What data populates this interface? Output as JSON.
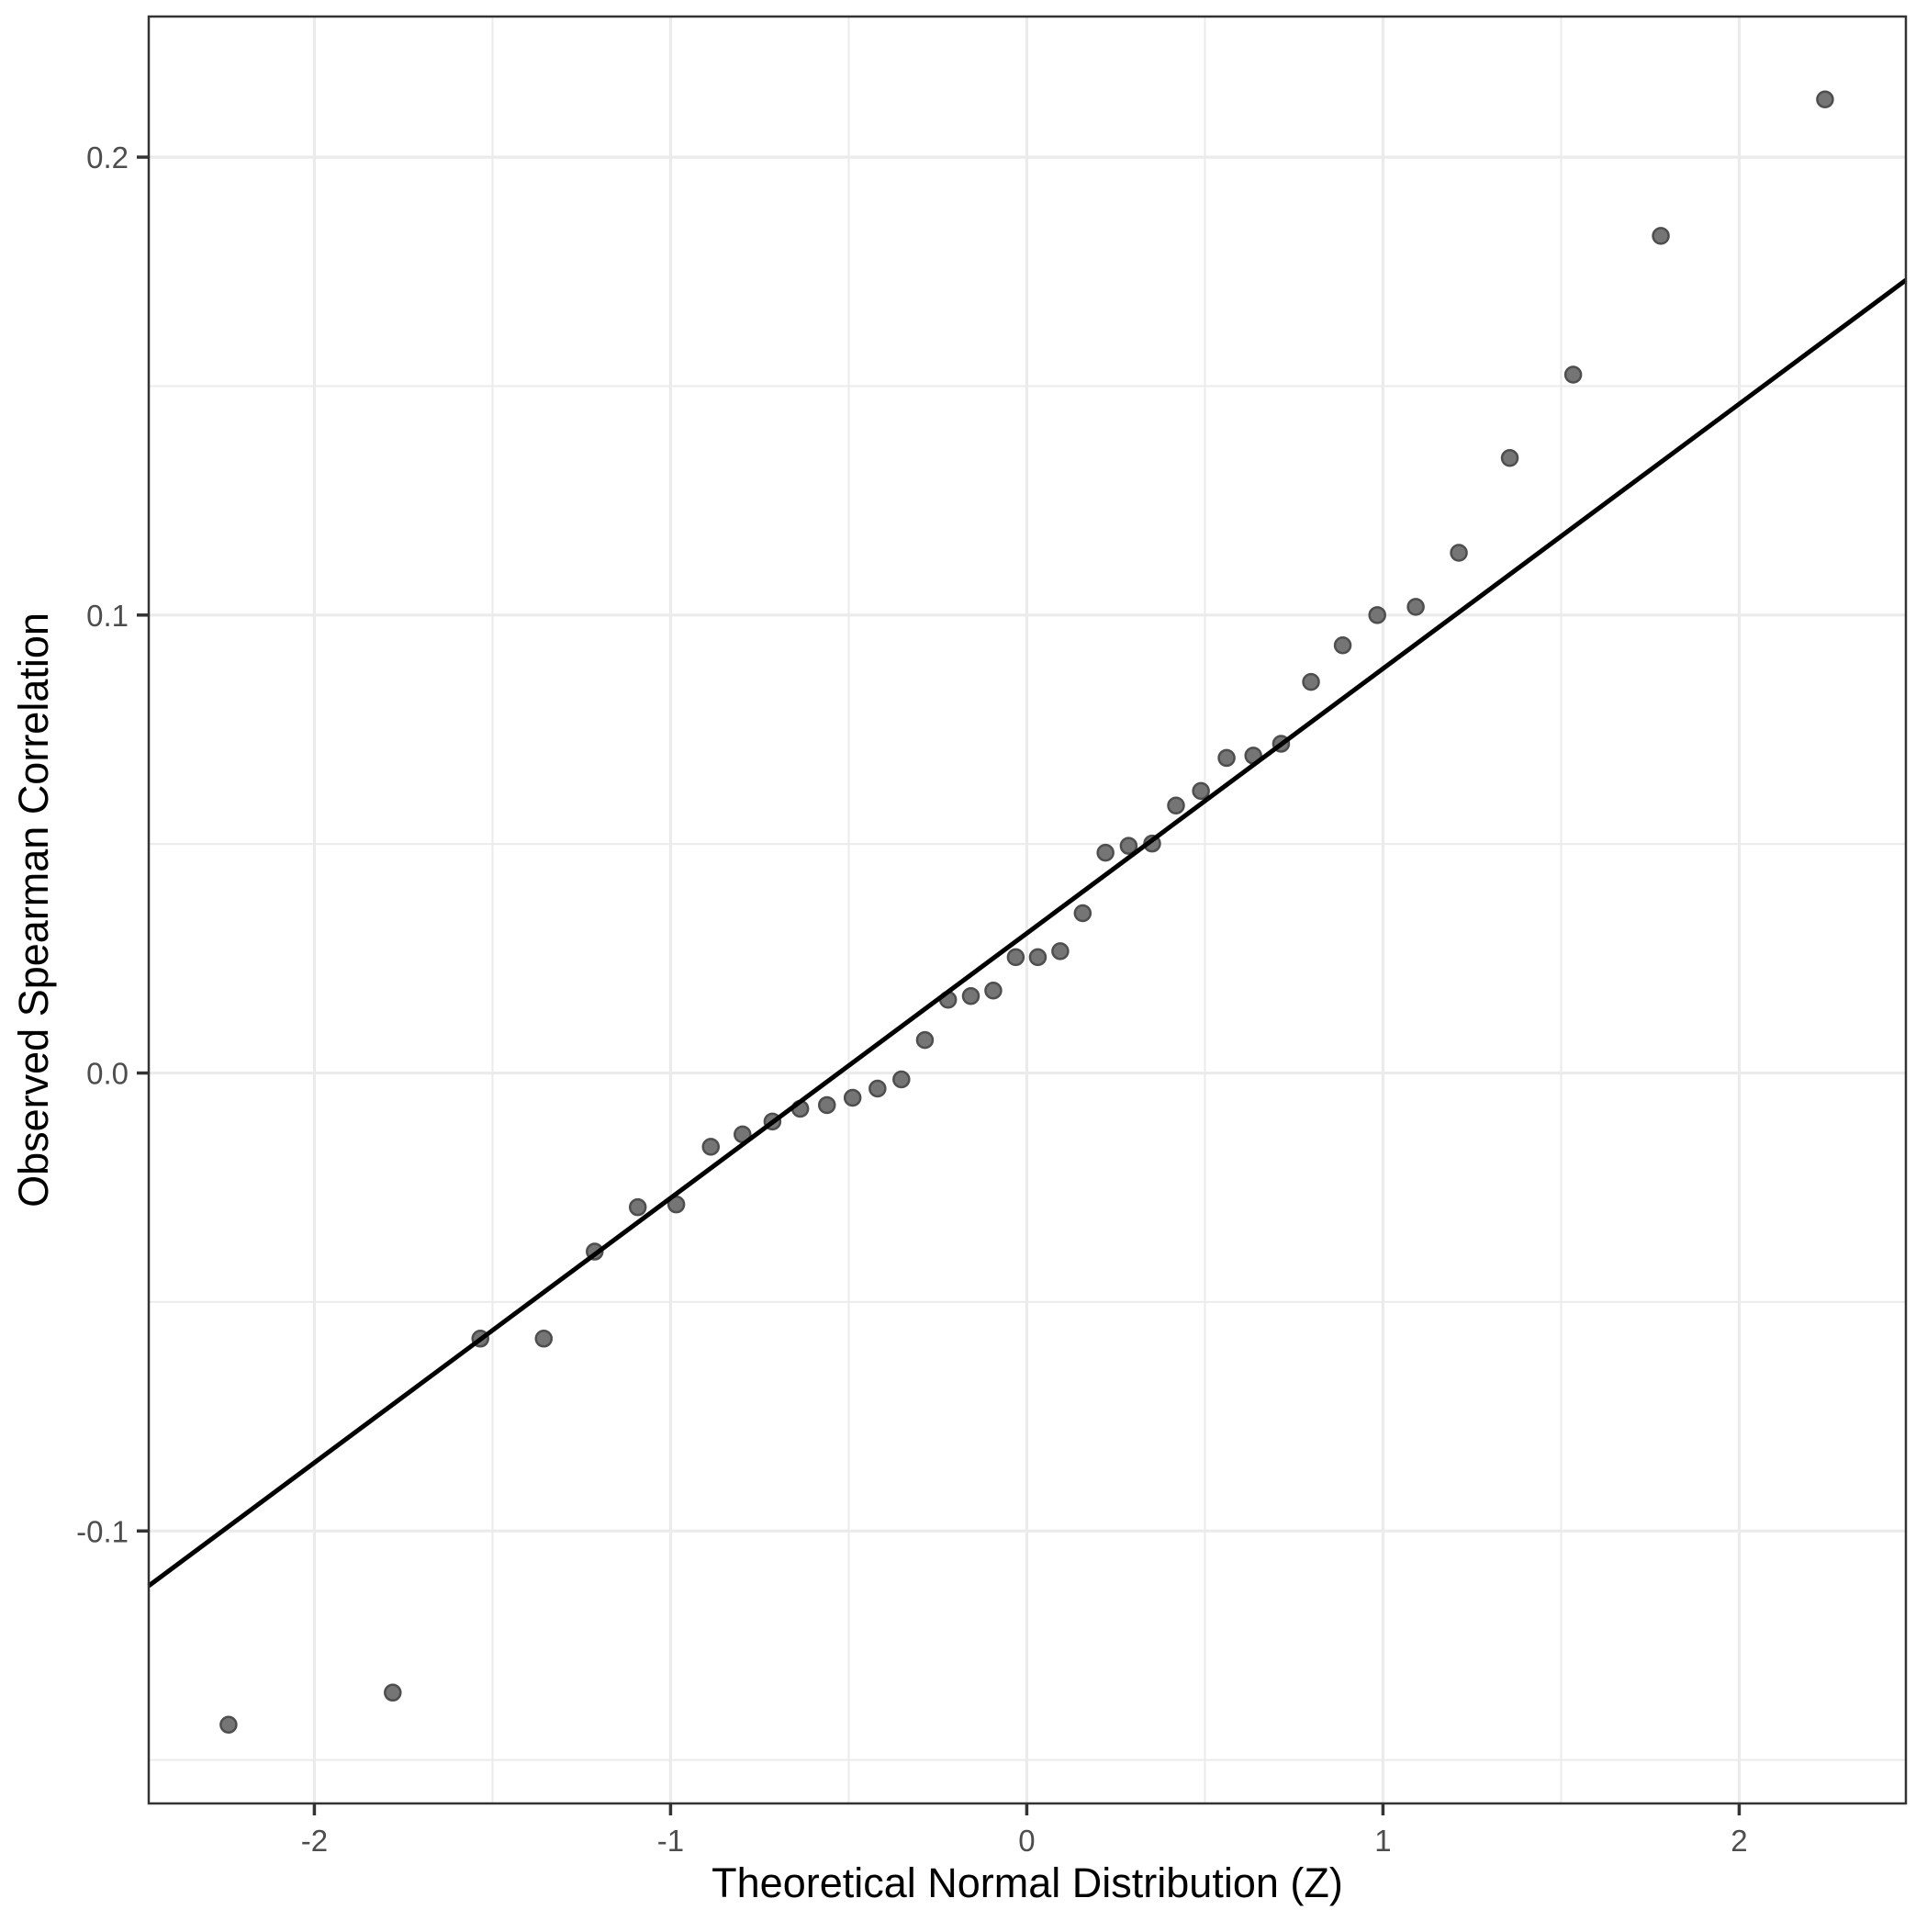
{
  "chart_data": {
    "type": "scatter",
    "title": "",
    "xlabel": "Theoretical Normal Distribution (Z)",
    "ylabel": "Observed Spearman Correlation",
    "xlim": [
      -2.465,
      2.468
    ],
    "ylim": [
      -0.1595,
      0.2307
    ],
    "x_major_ticks": [
      -2,
      -1,
      0,
      1,
      2
    ],
    "x_tick_labels": [
      "-2",
      "-1",
      "0",
      "1",
      "2"
    ],
    "x_minor_ticks": [
      -1.5,
      -0.5,
      0.5,
      1.5
    ],
    "y_major_ticks": [
      -0.1,
      0,
      0.1,
      0.2
    ],
    "y_tick_labels": [
      "-0.1",
      "0.0",
      "0.1",
      "0.2"
    ],
    "y_minor_ticks": [
      -0.15,
      -0.05,
      0.05,
      0.15
    ],
    "grid": true,
    "legend_position": "none",
    "reference_line": {
      "intercept": 0.0305,
      "slope": 0.0578
    },
    "points": [
      [
        -2.241,
        -0.1423
      ],
      [
        -1.78,
        -0.1353
      ],
      [
        -1.534,
        -0.058
      ],
      [
        -1.356,
        -0.058
      ],
      [
        -1.213,
        -0.039
      ],
      [
        -1.092,
        -0.0293
      ],
      [
        -0.984,
        -0.0287
      ],
      [
        -0.887,
        -0.0161
      ],
      [
        -0.798,
        -0.0134
      ],
      [
        -0.714,
        -0.0106
      ],
      [
        -0.636,
        -0.0078
      ],
      [
        -0.561,
        -0.007
      ],
      [
        -0.489,
        -0.0054
      ],
      [
        -0.419,
        -0.0034
      ],
      [
        -0.352,
        -0.0014
      ],
      [
        -0.286,
        0.0072
      ],
      [
        -0.221,
        0.016
      ],
      [
        -0.157,
        0.0168
      ],
      [
        -0.094,
        0.018
      ],
      [
        -0.031,
        0.0253
      ],
      [
        0.031,
        0.0253
      ],
      [
        0.094,
        0.0266
      ],
      [
        0.157,
        0.0349
      ],
      [
        0.221,
        0.0481
      ],
      [
        0.286,
        0.0496
      ],
      [
        0.352,
        0.0501
      ],
      [
        0.419,
        0.0584
      ],
      [
        0.489,
        0.0616
      ],
      [
        0.561,
        0.0688
      ],
      [
        0.636,
        0.0693
      ],
      [
        0.714,
        0.0719
      ],
      [
        0.798,
        0.0854
      ],
      [
        0.887,
        0.0934
      ],
      [
        0.984,
        0.1
      ],
      [
        1.092,
        0.1018
      ],
      [
        1.213,
        0.1136
      ],
      [
        1.356,
        0.1343
      ],
      [
        1.534,
        0.1525
      ],
      [
        1.78,
        0.1828
      ],
      [
        2.241,
        0.2126
      ]
    ],
    "colors": {
      "point_fill": "#757575",
      "point_stroke": "#4e4e4e",
      "line": "#000000",
      "grid": "#ebebeb",
      "axis_text": "#4d4d4d",
      "axis_title": "#000000",
      "panel_border": "#333333",
      "background": "#ffffff"
    }
  }
}
